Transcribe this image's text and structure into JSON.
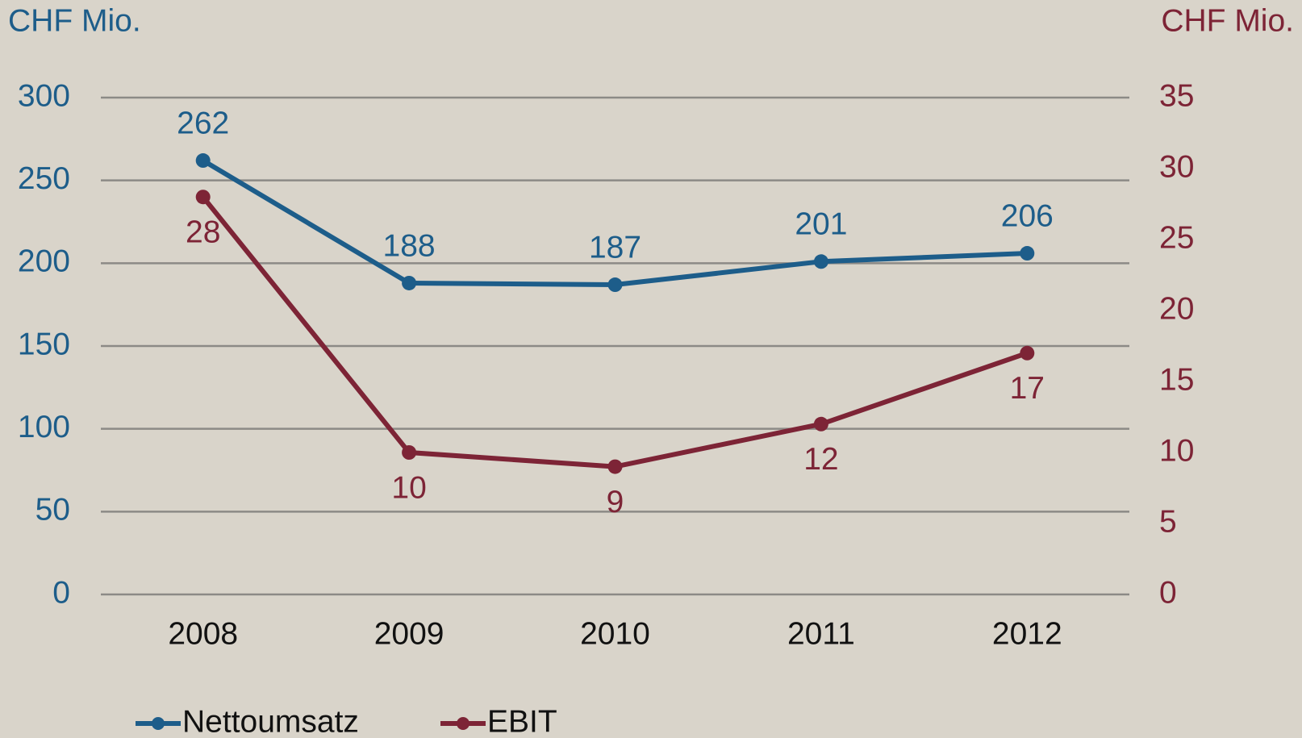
{
  "chart_data": {
    "type": "line",
    "y_label": "CHF Mio.",
    "y2_label": "CHF Mio.",
    "categories": [
      "2008",
      "2009",
      "2010",
      "2011",
      "2012"
    ],
    "series": [
      {
        "name": "Nettoumsatz",
        "color": "#1d5d8a",
        "values": [
          262,
          188,
          187,
          201,
          206
        ]
      },
      {
        "name": "EBIT",
        "color": "#7d2436",
        "axis": "y2",
        "values": [
          28,
          10,
          9,
          12,
          17
        ]
      }
    ],
    "ylim": [
      0,
      300
    ],
    "yticks": [
      0,
      50,
      100,
      150,
      200,
      250,
      300
    ],
    "y2lim": [
      0,
      35
    ],
    "y2ticks": [
      0,
      5,
      10,
      15,
      20,
      25,
      30,
      35
    ],
    "grid": true,
    "legend": "bottom-left"
  }
}
